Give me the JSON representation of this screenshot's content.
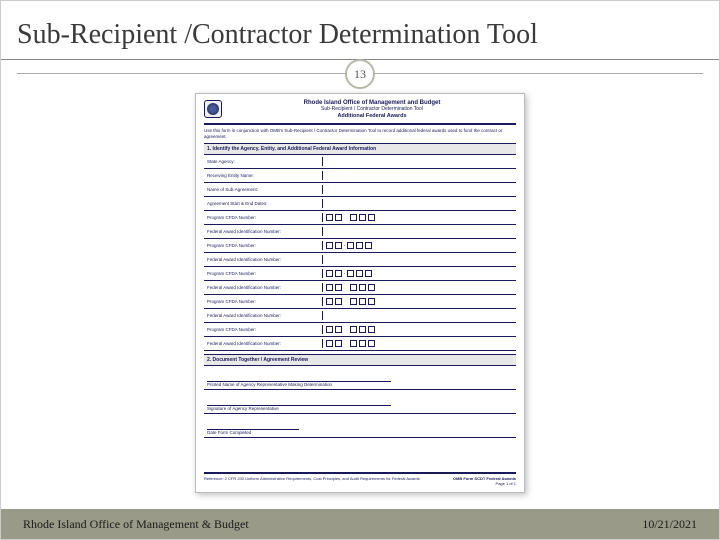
{
  "slide": {
    "title": "Sub-Recipient /Contractor Determination Tool",
    "page_number": "13",
    "colors": {
      "footer_bg": "#9a9a88",
      "form_text": "#1a1a5a",
      "border": "#888888"
    }
  },
  "form": {
    "header": {
      "org": "Rhode Island Office of Management and Budget",
      "tool": "Sub-Recipient / Contractor Determination Tool",
      "subtitle": "Additional Federal Awards"
    },
    "intro": "Use this form in conjunction with OMB's Sub-Recipient / Contractor Determination Tool to record additional federal awards used to fund the contract or agreement.",
    "section1_title": "1.  Identify the Agency, Entity, and Additional Federal Award Information",
    "rows": [
      {
        "label": "State Agency:",
        "type": "blank"
      },
      {
        "label": "Receiving Entity Name:",
        "type": "blank"
      },
      {
        "label": "Name of Sub-Agreement:",
        "type": "blank"
      },
      {
        "label": "Agreement Start & End Dates:",
        "type": "blank"
      },
      {
        "label": "Program CFDA Number:",
        "type": "cfda"
      },
      {
        "label": "Federal Award Identification Number:",
        "type": "blank"
      },
      {
        "label": "Program CFDA Number:",
        "type": "cfda2"
      },
      {
        "label": "Federal Award Identification Number:",
        "type": "blank"
      },
      {
        "label": "Program CFDA Number:",
        "type": "cfda2"
      },
      {
        "label": "Federal Award Identification Number:",
        "type": "faid"
      },
      {
        "label": "Program CFDA Number:",
        "type": "cfda"
      },
      {
        "label": "Federal Award Identification Number:",
        "type": "blank"
      },
      {
        "label": "Program CFDA Number:",
        "type": "cfda3"
      },
      {
        "label": "Federal Award Identification Number:",
        "type": "faid"
      }
    ],
    "section2_title": "2.  Document Together / Agreement Review",
    "sig1": "Printed Name of Agency Representative Making Determination",
    "sig2": "Signature of Agency Representative",
    "sig3": "Date Form Completed",
    "footer_ref": "Reference: 2 CFR 200 Uniform Administrative Requirements, Cost Principles, and Audit Requirements for Federal Awards",
    "footer_id": "OMB Form SCDT Federal Awards",
    "footer_page": "Page 1 of 1"
  },
  "footer": {
    "left": "Rhode Island Office of Management & Budget",
    "right": "10/21/2021"
  }
}
